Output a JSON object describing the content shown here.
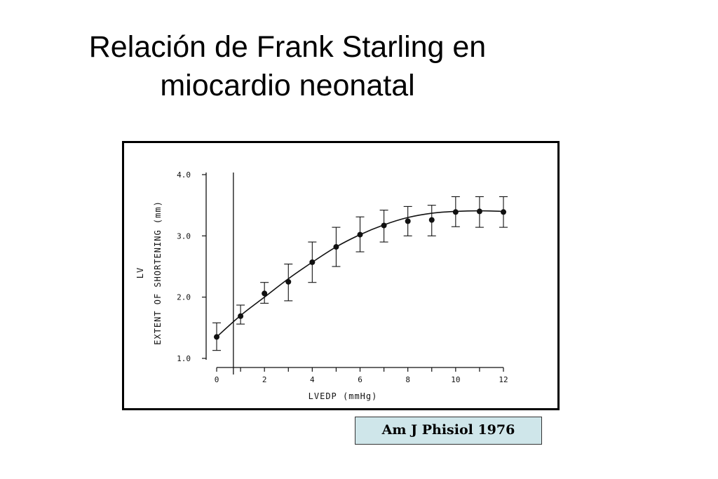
{
  "slide": {
    "title_line1": "Relación de Frank Starling en",
    "title_line2": "miocardio neonatal",
    "citation": "Am J Phisiol 1976"
  },
  "chart_data": {
    "type": "scatter",
    "title": "",
    "xlabel": "LVEDP (mmHg)",
    "ylabel_line1": "LV",
    "ylabel_line2": "EXTENT OF SHORTENING (mm)",
    "xlim": [
      0,
      12
    ],
    "ylim": [
      1.0,
      4.0
    ],
    "x_ticks": [
      "0",
      "2",
      "4",
      "6",
      "8",
      "10",
      "12"
    ],
    "y_ticks": [
      "1.0",
      "2.0",
      "3.0",
      "4.0"
    ],
    "vertical_line_x": 0.7,
    "grid": false,
    "series": [
      {
        "points": [
          {
            "x": 0,
            "y": 1.35,
            "err_low": 1.13,
            "err_high": 1.58
          },
          {
            "x": 1,
            "y": 1.69,
            "err_low": 1.56,
            "err_high": 1.87
          },
          {
            "x": 2,
            "y": 2.06,
            "err_low": 1.9,
            "err_high": 2.24
          },
          {
            "x": 3,
            "y": 2.25,
            "err_low": 1.94,
            "err_high": 2.54
          },
          {
            "x": 4,
            "y": 2.57,
            "err_low": 2.24,
            "err_high": 2.9
          },
          {
            "x": 5,
            "y": 2.82,
            "err_low": 2.5,
            "err_high": 3.14
          },
          {
            "x": 6,
            "y": 3.02,
            "err_low": 2.74,
            "err_high": 3.31
          },
          {
            "x": 7,
            "y": 3.17,
            "err_low": 2.9,
            "err_high": 3.42
          },
          {
            "x": 8,
            "y": 3.24,
            "err_low": 3.0,
            "err_high": 3.48
          },
          {
            "x": 9,
            "y": 3.26,
            "err_low": 3.0,
            "err_high": 3.5
          },
          {
            "x": 10,
            "y": 3.39,
            "err_low": 3.15,
            "err_high": 3.64
          },
          {
            "x": 11,
            "y": 3.4,
            "err_low": 3.14,
            "err_high": 3.64
          },
          {
            "x": 12,
            "y": 3.39,
            "err_low": 3.14,
            "err_high": 3.64
          }
        ]
      }
    ],
    "fit_curve": {
      "x": [
        0,
        1,
        2,
        3,
        4,
        5,
        6,
        7,
        8,
        9,
        10,
        11,
        12
      ],
      "y": [
        1.35,
        1.7,
        2.0,
        2.3,
        2.57,
        2.82,
        3.02,
        3.18,
        3.3,
        3.37,
        3.4,
        3.41,
        3.4
      ]
    }
  }
}
